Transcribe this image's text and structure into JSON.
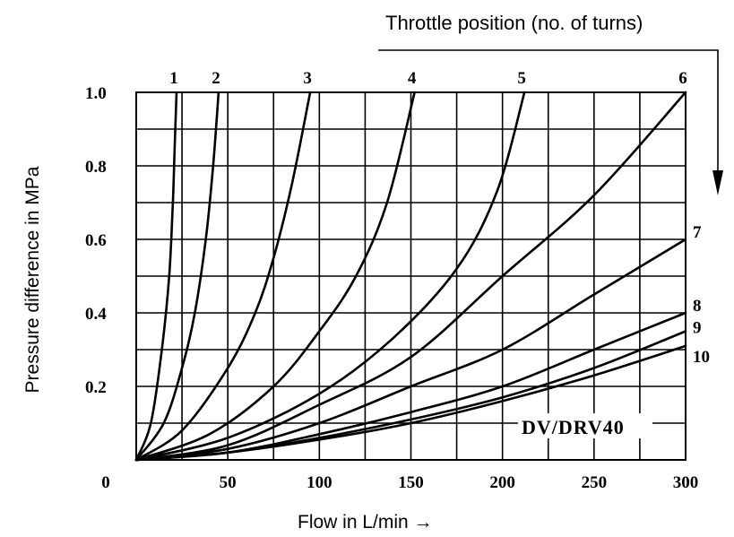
{
  "chart_data": {
    "type": "line",
    "title": "Throttle position (no. of turns)",
    "xlabel": "Flow in L/min →",
    "ylabel": "Pressure difference in MPa",
    "annotation": "DV/DRV40",
    "x_ticks": [
      "0",
      "50",
      "100",
      "150",
      "200",
      "250",
      "300"
    ],
    "y_ticks": [
      "0.2",
      "0.4",
      "0.6",
      "0.8",
      "1.0"
    ],
    "xlim": [
      0,
      300
    ],
    "ylim": [
      0,
      1.0
    ],
    "grid": true,
    "x_grid_step": 25,
    "y_grid_step": 0.1,
    "series": [
      {
        "name": "1",
        "x": [
          0,
          8,
          14,
          18,
          20,
          21,
          22
        ],
        "y": [
          0,
          0.1,
          0.3,
          0.5,
          0.7,
          0.85,
          1.0
        ]
      },
      {
        "name": "2",
        "x": [
          0,
          15,
          25,
          32,
          38,
          42,
          45
        ],
        "y": [
          0,
          0.1,
          0.25,
          0.4,
          0.6,
          0.8,
          1.0
        ]
      },
      {
        "name": "3",
        "x": [
          0,
          25,
          50,
          65,
          75,
          85,
          95
        ],
        "y": [
          0,
          0.08,
          0.25,
          0.4,
          0.55,
          0.75,
          1.0
        ]
      },
      {
        "name": "4",
        "x": [
          0,
          40,
          75,
          100,
          120,
          137,
          152
        ],
        "y": [
          0,
          0.07,
          0.2,
          0.35,
          0.5,
          0.7,
          1.0
        ]
      },
      {
        "name": "5",
        "x": [
          0,
          50,
          100,
          140,
          175,
          197,
          212
        ],
        "y": [
          0,
          0.06,
          0.18,
          0.33,
          0.52,
          0.73,
          1.0
        ]
      },
      {
        "name": "6",
        "x": [
          0,
          50,
          100,
          150,
          200,
          250,
          300
        ],
        "y": [
          0,
          0.04,
          0.15,
          0.28,
          0.5,
          0.72,
          1.0
        ]
      },
      {
        "name": "7",
        "x": [
          0,
          50,
          100,
          150,
          200,
          250,
          300
        ],
        "y": [
          0,
          0.03,
          0.1,
          0.2,
          0.3,
          0.45,
          0.6
        ]
      },
      {
        "name": "8",
        "x": [
          0,
          50,
          100,
          150,
          200,
          250,
          300
        ],
        "y": [
          0,
          0.02,
          0.07,
          0.13,
          0.2,
          0.3,
          0.4
        ]
      },
      {
        "name": "9",
        "x": [
          0,
          50,
          100,
          150,
          200,
          250,
          300
        ],
        "y": [
          0,
          0.02,
          0.06,
          0.11,
          0.17,
          0.25,
          0.35
        ]
      },
      {
        "name": "10",
        "x": [
          0,
          50,
          100,
          150,
          200,
          250,
          300
        ],
        "y": [
          0,
          0.02,
          0.055,
          0.1,
          0.16,
          0.23,
          0.31
        ]
      }
    ]
  }
}
